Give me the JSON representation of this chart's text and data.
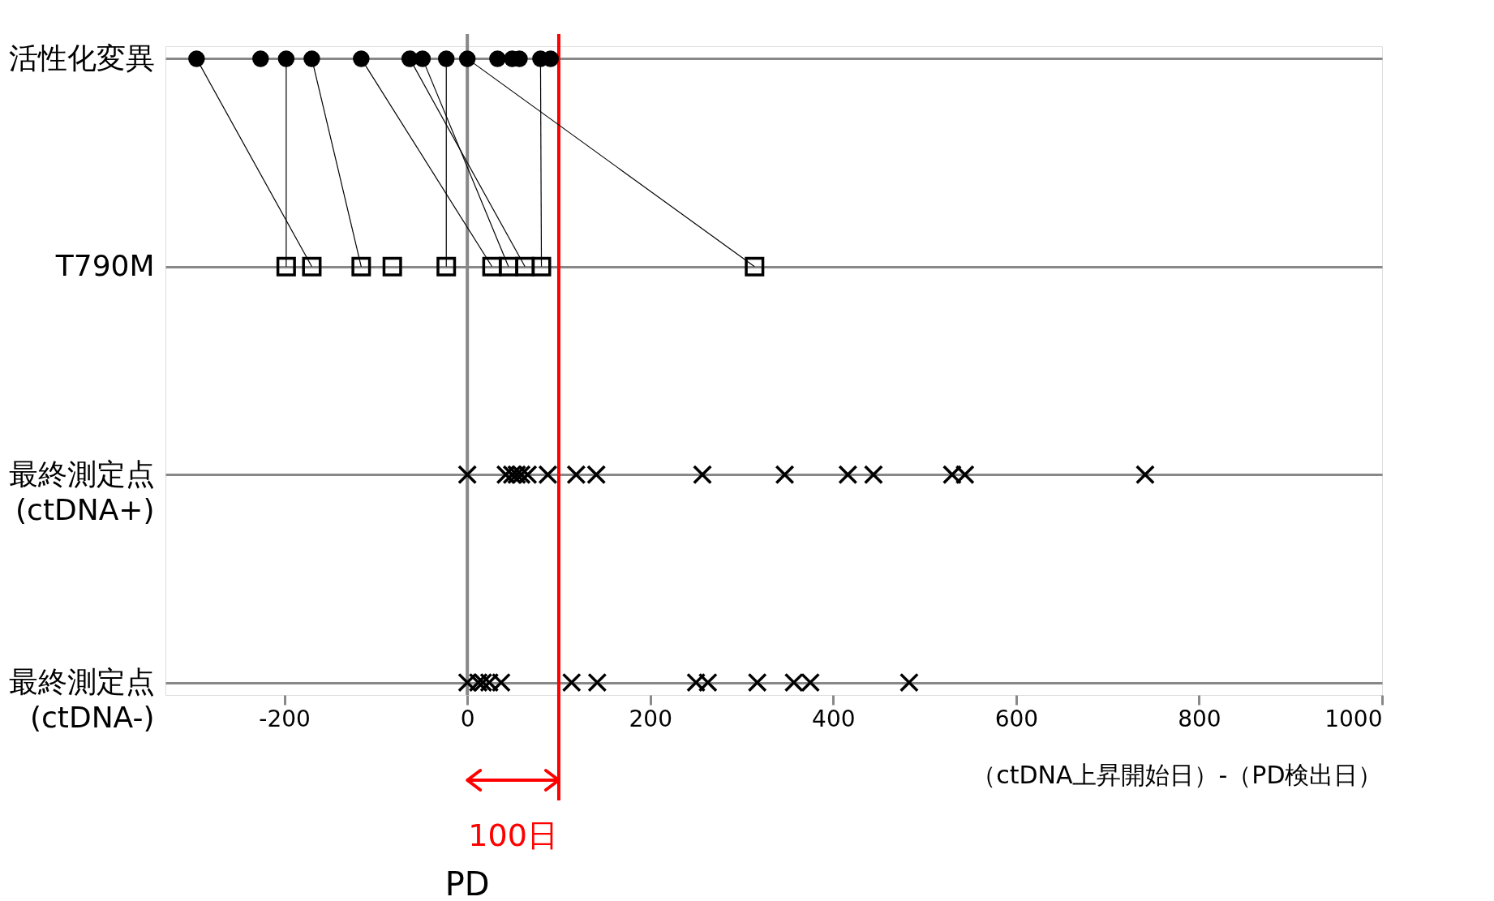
{
  "chart_data": {
    "type": "scatter",
    "orientation": "horizontal",
    "xlabel": "（ctDNA上昇開始日）-（PD検出日）",
    "xlim": [
      -330,
      1000
    ],
    "xticks": [
      -200,
      0,
      200,
      400,
      600,
      800,
      1000
    ],
    "categories": [
      "活性化変異",
      "T790M",
      "最終測定点\n(ctDNA+)",
      "最終測定点\n(ctDNA-)"
    ],
    "grid": "y",
    "series": [
      {
        "type": "line",
        "color": "#000000",
        "x": [
          "活性化変異",
          "T790M"
        ],
        "values": [
          -296,
          -170
        ]
      },
      {
        "type": "line",
        "color": "#000000",
        "x": [
          "活性化変異",
          "T790M"
        ],
        "values": [
          -198,
          -198
        ]
      },
      {
        "type": "line",
        "color": "#000000",
        "x": [
          "活性化変異",
          "T790M"
        ],
        "values": [
          -170,
          -116
        ]
      },
      {
        "type": "line",
        "color": "#000000",
        "x": [
          "活性化変異",
          "T790M"
        ],
        "values": [
          -116,
          27
        ]
      },
      {
        "type": "line",
        "color": "#000000",
        "x": [
          "活性化変異",
          "T790M"
        ],
        "values": [
          -63,
          63
        ]
      },
      {
        "type": "line",
        "color": "#000000",
        "x": [
          "活性化変異",
          "T790M"
        ],
        "values": [
          -49,
          45
        ]
      },
      {
        "type": "line",
        "color": "#000000",
        "x": [
          "活性化変異",
          "T790M"
        ],
        "values": [
          -23,
          -23
        ]
      },
      {
        "type": "line",
        "color": "#000000",
        "x": [
          "活性化変異",
          "T790M"
        ],
        "values": [
          0,
          314
        ]
      },
      {
        "type": "line",
        "color": "#000000",
        "x": [
          "活性化変異",
          "T790M"
        ],
        "values": [
          80,
          81
        ]
      },
      {
        "type": "scatter",
        "marker": "circle",
        "color": "#000000",
        "x": [
          "活性化変異",
          "活性化変異",
          "活性化変異",
          "活性化変異",
          "活性化変異",
          "活性化変異",
          "活性化変異",
          "活性化変異",
          "活性化変異",
          "活性化変異",
          "活性化変異",
          "活性化変異",
          "活性化変異",
          "活性化変異"
        ],
        "values": [
          -296,
          -226,
          -198,
          -170,
          -116,
          -63,
          -49,
          -23,
          0,
          33,
          49,
          57,
          80,
          91
        ]
      },
      {
        "type": "scatter",
        "marker": "square",
        "color": "#000000",
        "x": [
          "T790M",
          "T790M",
          "T790M",
          "T790M",
          "T790M",
          "T790M",
          "T790M",
          "T790M",
          "T790M",
          "T790M"
        ],
        "values": [
          -198,
          -170,
          -116,
          -82,
          -23,
          27,
          45,
          63,
          81,
          314
        ]
      },
      {
        "type": "scatter",
        "marker": "cross",
        "color": "#000000",
        "x": [
          "最終測定点\n(ctDNA+)",
          "最終測定点\n(ctDNA+)",
          "最終測定点\n(ctDNA+)",
          "最終測定点\n(ctDNA+)",
          "最終測定点\n(ctDNA+)",
          "最終測定点\n(ctDNA+)",
          "最終測定点\n(ctDNA+)",
          "最終測定点\n(ctDNA+)",
          "最終測定点\n(ctDNA+)",
          "最終測定点\n(ctDNA+)",
          "最終測定点\n(ctDNA+)",
          "最終測定点\n(ctDNA+)",
          "最終測定点\n(ctDNA+)",
          "最終測定点\n(ctDNA+)",
          "最終測定点\n(ctDNA+)",
          "最終測定点\n(ctDNA+)"
        ],
        "values": [
          0,
          42,
          49,
          54,
          59,
          66,
          88,
          119,
          141,
          257,
          347,
          416,
          444,
          530,
          544,
          741
        ]
      },
      {
        "type": "scatter",
        "marker": "cross",
        "color": "#000000",
        "x": [
          "最終測定点\n(ctDNA-)",
          "最終測定点\n(ctDNA-)",
          "最終測定点\n(ctDNA-)",
          "最終測定点\n(ctDNA-)",
          "最終測定点\n(ctDNA-)",
          "最終測定点\n(ctDNA-)",
          "最終測定点\n(ctDNA-)",
          "最終測定点\n(ctDNA-)",
          "最終測定点\n(ctDNA-)",
          "最終測定点\n(ctDNA-)",
          "最終測定点\n(ctDNA-)",
          "最終測定点\n(ctDNA-)",
          "最終測定点\n(ctDNA-)"
        ],
        "values": [
          0,
          12,
          17,
          24,
          37,
          114,
          142,
          250,
          263,
          317,
          357,
          375,
          483
        ]
      }
    ],
    "ref_lines": [
      {
        "axis": "x",
        "value": 0,
        "color": "#888888"
      },
      {
        "axis": "x",
        "value": 100,
        "color": "#ff0000"
      }
    ],
    "annotations": [
      "100日",
      "PD"
    ]
  }
}
